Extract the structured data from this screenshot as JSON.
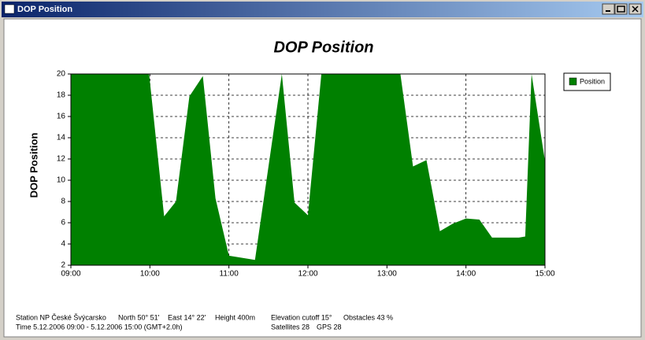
{
  "window": {
    "title": "DOP Position"
  },
  "chart_data": {
    "type": "area",
    "title": "DOP Position",
    "y_label": "DOP Position",
    "x": [
      9.0,
      9.99,
      10.18,
      10.33,
      10.5,
      10.67,
      10.83,
      11.0,
      11.33,
      11.67,
      11.83,
      12.0,
      12.17,
      13.17,
      13.33,
      13.5,
      13.67,
      13.83,
      14.0,
      14.17,
      14.33,
      14.67,
      14.75,
      14.83,
      15.0
    ],
    "series": [
      {
        "name": "Position",
        "color": "#008000",
        "values": [
          20,
          20,
          6.6,
          8.0,
          17.9,
          19.8,
          8.3,
          2.9,
          2.5,
          20,
          7.9,
          6.7,
          20,
          20,
          11.3,
          11.9,
          5.2,
          5.9,
          6.4,
          6.3,
          4.6,
          4.6,
          4.7,
          20,
          11.8
        ]
      }
    ],
    "xlim": [
      9,
      15
    ],
    "xticks": [
      {
        "value": 9,
        "label": "09:00"
      },
      {
        "value": 10,
        "label": "10:00"
      },
      {
        "value": 11,
        "label": "11:00"
      },
      {
        "value": 12,
        "label": "12:00"
      },
      {
        "value": 13,
        "label": "13:00"
      },
      {
        "value": 14,
        "label": "14:00"
      },
      {
        "value": 15,
        "label": "15:00"
      }
    ],
    "ylim": [
      2,
      20
    ],
    "yticks": [
      2,
      4,
      6,
      8,
      10,
      12,
      14,
      16,
      18,
      20
    ],
    "grid": true,
    "legend": "right"
  },
  "footer": {
    "station": "Station NP České Švýcarsko",
    "north": "North 50° 51'",
    "east": "East 14° 22'",
    "height": "Height 400m",
    "elevation": "Elevation cutoff 15°",
    "obstacles": "Obstacles 43 %",
    "time": "Time 5.12.2006 09:00 -  5.12.2006 15:00 (GMT+2.0h)",
    "satellites": "Satellites 28",
    "gps": "GPS 28"
  }
}
